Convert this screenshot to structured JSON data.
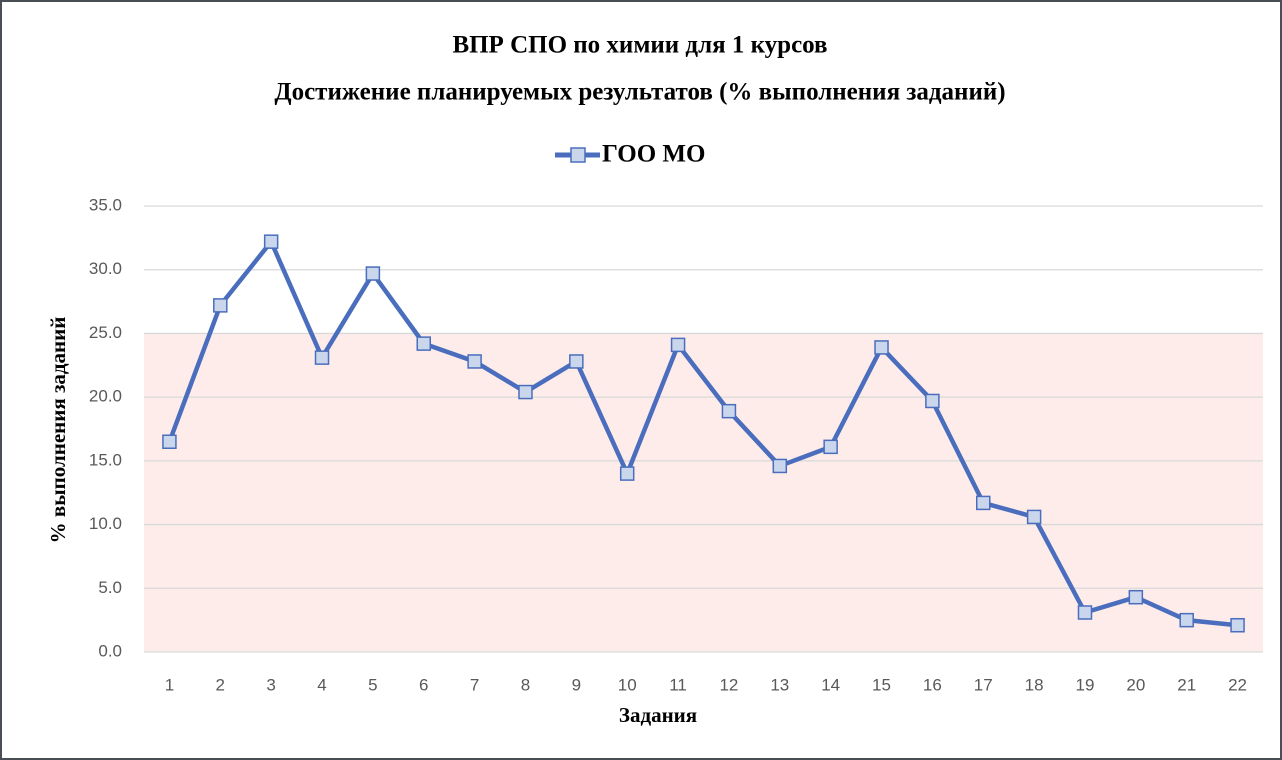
{
  "chart_data": {
    "type": "line",
    "title": "ВПР СПО по химии для 1 курсов",
    "subtitle": "Достижение планируемых результатов (% выполнения заданий)",
    "x_label": "Задания",
    "y_label": "% выполнения заданий",
    "categories": [
      "1",
      "2",
      "3",
      "4",
      "5",
      "6",
      "7",
      "8",
      "9",
      "10",
      "11",
      "12",
      "13",
      "14",
      "15",
      "16",
      "17",
      "18",
      "19",
      "20",
      "21",
      "22"
    ],
    "series": [
      {
        "name": "ГОО МО",
        "color": "#4a6ebd",
        "values": [
          16.5,
          27.2,
          32.2,
          23.1,
          29.7,
          24.2,
          22.8,
          20.4,
          22.8,
          14.0,
          24.1,
          18.9,
          14.6,
          16.1,
          23.9,
          19.7,
          11.7,
          10.6,
          3.1,
          4.3,
          2.5,
          2.1
        ]
      }
    ],
    "ylim": [
      0,
      35
    ],
    "yticks": [
      {
        "value": 0,
        "label": "0.0"
      },
      {
        "value": 5,
        "label": "5.0"
      },
      {
        "value": 10,
        "label": "10.0"
      },
      {
        "value": 15,
        "label": "15.0"
      },
      {
        "value": 20,
        "label": "20.0"
      },
      {
        "value": 25,
        "label": "25.0"
      },
      {
        "value": 30,
        "label": "30.0"
      },
      {
        "value": 35,
        "label": "35.0"
      }
    ],
    "grid": true,
    "shaded_range": [
      0,
      25
    ],
    "shaded_color": "#fdecea",
    "marker_fill": "#c9d6ec",
    "legend": "top"
  }
}
